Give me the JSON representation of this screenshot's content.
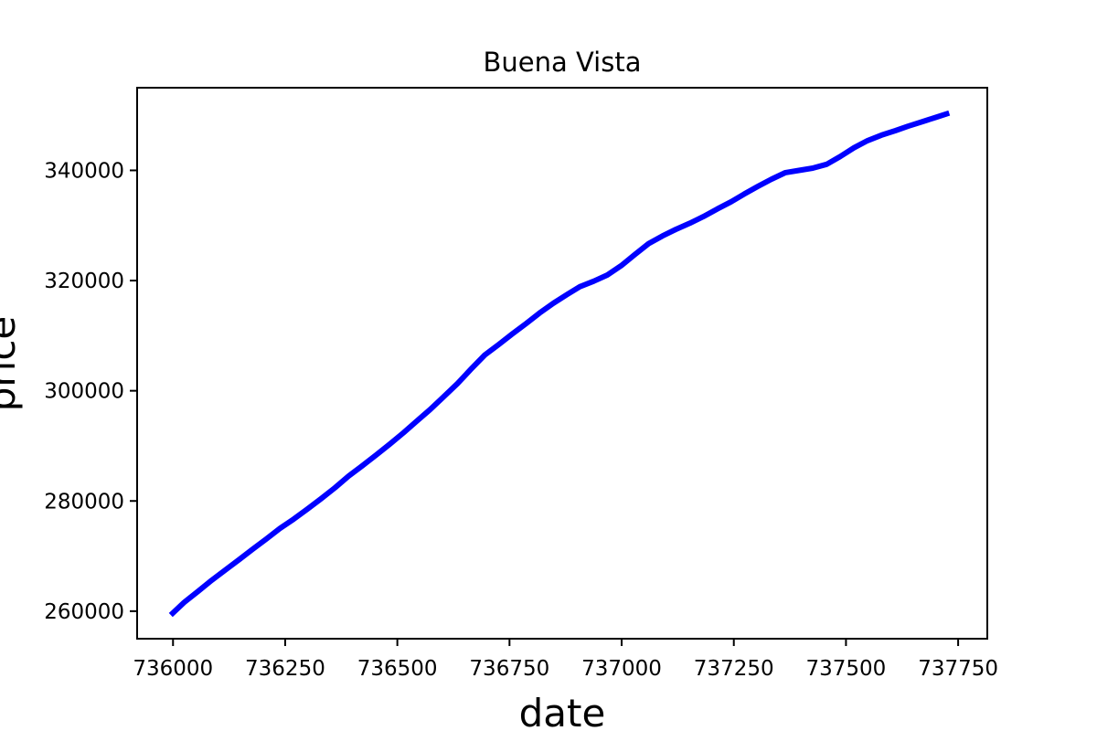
{
  "chart_data": {
    "type": "line",
    "title": "Buena Vista",
    "xlabel": "date",
    "ylabel": "price",
    "xlim": [
      735920,
      737815
    ],
    "ylim": [
      255000,
      355000
    ],
    "x_ticks": [
      736000,
      736250,
      736500,
      736750,
      737000,
      737250,
      737500,
      737750
    ],
    "y_ticks": [
      260000,
      280000,
      300000,
      320000,
      340000
    ],
    "grid": false,
    "line_color": "#0000ff",
    "series": [
      {
        "x": [
          735995,
          736025,
          736056,
          736086,
          736117,
          736148,
          736177,
          736208,
          736238,
          736269,
          736299,
          736330,
          736361,
          736391,
          736422,
          736452,
          736483,
          736514,
          736542,
          736573,
          736603,
          736634,
          736664,
          736695,
          736726,
          736756,
          736787,
          736817,
          736848,
          736879,
          736907,
          736938,
          736968,
          736999,
          737029,
          737060,
          737091,
          737121,
          737152,
          737182,
          737213,
          737244,
          737273,
          737304,
          737334,
          737365,
          737395,
          737426,
          737457,
          737487,
          737518,
          737548,
          737579,
          737610,
          737638,
          737669,
          737699,
          737730
        ],
        "y": [
          259300,
          261600,
          263600,
          265600,
          267500,
          269400,
          271200,
          273100,
          275000,
          276700,
          278500,
          280400,
          282400,
          284500,
          286400,
          288300,
          290300,
          292400,
          294400,
          296600,
          298900,
          301300,
          303900,
          306500,
          308400,
          310300,
          312200,
          314100,
          315900,
          317500,
          318900,
          319900,
          321000,
          322700,
          324700,
          326700,
          328100,
          329300,
          330400,
          331600,
          333000,
          334300,
          335700,
          337100,
          338400,
          339600,
          340000,
          340400,
          341100,
          342500,
          344100,
          345400,
          346400,
          347200,
          348000,
          348800,
          349600,
          350400
        ]
      }
    ]
  }
}
